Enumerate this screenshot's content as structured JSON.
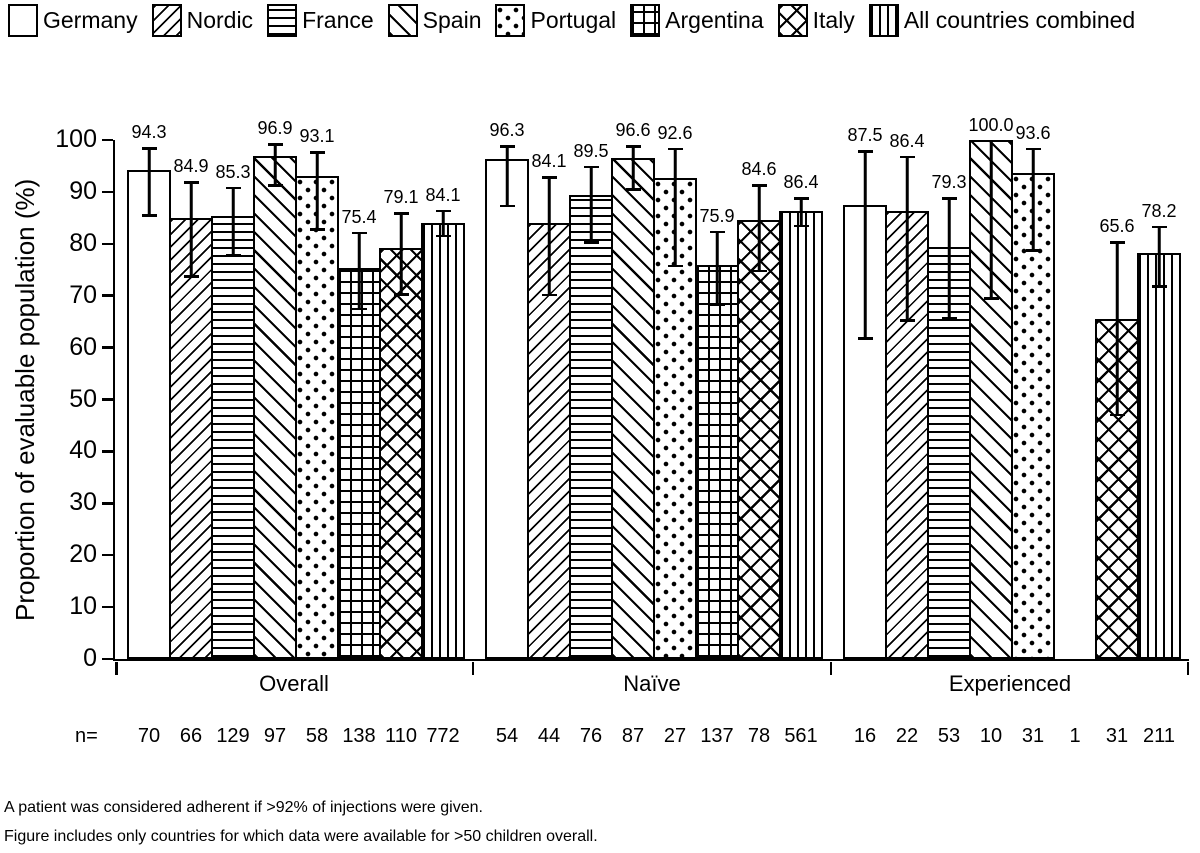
{
  "legend": {
    "items": [
      {
        "label": "Germany",
        "pattern": "plain"
      },
      {
        "label": "Nordic",
        "pattern": "diag-up"
      },
      {
        "label": "France",
        "pattern": "horiz"
      },
      {
        "label": "Spain",
        "pattern": "diag-down"
      },
      {
        "label": "Portugal",
        "pattern": "dots"
      },
      {
        "label": "Argentina",
        "pattern": "grid"
      },
      {
        "label": "Italy",
        "pattern": "cross"
      },
      {
        "label": "All countries combined",
        "pattern": "vert"
      }
    ]
  },
  "chart_data": {
    "type": "bar",
    "title": "",
    "xlabel": "",
    "ylabel": "Proportion of evaluable population (%)",
    "ylim": [
      0,
      100
    ],
    "yticks": [
      0,
      10,
      20,
      30,
      40,
      50,
      60,
      70,
      80,
      90,
      100
    ],
    "grid": false,
    "legend_position": "top",
    "error_bars": "95% CI (estimated from figure)",
    "bar_colors": {
      "fill": "#ffffff",
      "stroke": "#000000"
    },
    "n_prefix": "n=",
    "groups": [
      {
        "label": "Overall",
        "bars": [
          {
            "country": "Germany",
            "pattern": "plain",
            "value": 94.3,
            "ci_low": 85.2,
            "ci_high": 98.6,
            "n": 70
          },
          {
            "country": "Nordic",
            "pattern": "diag-up",
            "value": 84.9,
            "ci_low": 73.5,
            "ci_high": 92.1,
            "n": 66
          },
          {
            "country": "France",
            "pattern": "horiz",
            "value": 85.3,
            "ci_low": 77.6,
            "ci_high": 91.0,
            "n": 129
          },
          {
            "country": "Spain",
            "pattern": "diag-down",
            "value": 96.9,
            "ci_low": 91.0,
            "ci_high": 99.4,
            "n": 97
          },
          {
            "country": "Portugal",
            "pattern": "dots",
            "value": 93.1,
            "ci_low": 82.5,
            "ci_high": 97.8,
            "n": 58
          },
          {
            "country": "Argentina",
            "pattern": "grid",
            "value": 75.4,
            "ci_low": 67.2,
            "ci_high": 82.3,
            "n": 138
          },
          {
            "country": "Italy",
            "pattern": "cross",
            "value": 79.1,
            "ci_low": 70.0,
            "ci_high": 86.1,
            "n": 110
          },
          {
            "country": "All countries combined",
            "pattern": "vert",
            "value": 84.1,
            "ci_low": 81.3,
            "ci_high": 86.6,
            "n": 772
          }
        ]
      },
      {
        "label": "Naïve",
        "bars": [
          {
            "country": "Germany",
            "pattern": "plain",
            "value": 96.3,
            "ci_low": 87.0,
            "ci_high": 99.0,
            "n": 54
          },
          {
            "country": "Nordic",
            "pattern": "diag-up",
            "value": 84.1,
            "ci_low": 69.9,
            "ci_high": 93.0,
            "n": 44
          },
          {
            "country": "France",
            "pattern": "horiz",
            "value": 89.5,
            "ci_low": 80.0,
            "ci_high": 95.0,
            "n": 76
          },
          {
            "country": "Spain",
            "pattern": "diag-down",
            "value": 96.6,
            "ci_low": 90.2,
            "ci_high": 99.0,
            "n": 87
          },
          {
            "country": "Portugal",
            "pattern": "dots",
            "value": 92.6,
            "ci_low": 75.5,
            "ci_high": 98.5,
            "n": 27
          },
          {
            "country": "Argentina",
            "pattern": "grid",
            "value": 75.9,
            "ci_low": 68.0,
            "ci_high": 82.5,
            "n": 137
          },
          {
            "country": "Italy",
            "pattern": "cross",
            "value": 84.6,
            "ci_low": 74.5,
            "ci_high": 91.5,
            "n": 78
          },
          {
            "country": "All countries combined",
            "pattern": "vert",
            "value": 86.4,
            "ci_low": 83.2,
            "ci_high": 89.0,
            "n": 561
          }
        ]
      },
      {
        "label": "Experienced",
        "bars": [
          {
            "country": "Germany",
            "pattern": "plain",
            "value": 87.5,
            "ci_low": 61.5,
            "ci_high": 98.0,
            "n": 16
          },
          {
            "country": "Nordic",
            "pattern": "diag-up",
            "value": 86.4,
            "ci_low": 65.0,
            "ci_high": 97.0,
            "n": 22
          },
          {
            "country": "France",
            "pattern": "horiz",
            "value": 79.3,
            "ci_low": 65.5,
            "ci_high": 89.0,
            "n": 53
          },
          {
            "country": "Spain",
            "pattern": "diag-down",
            "value": 100.0,
            "ci_low": 69.2,
            "ci_high": 100.0,
            "n": 10
          },
          {
            "country": "Portugal",
            "pattern": "dots",
            "value": 93.6,
            "ci_low": 78.5,
            "ci_high": 98.5,
            "n": 31
          },
          {
            "country": "Argentina",
            "pattern": "grid",
            "value": null,
            "ci_low": null,
            "ci_high": null,
            "n": 1
          },
          {
            "country": "Italy",
            "pattern": "cross",
            "value": 65.6,
            "ci_low": 46.8,
            "ci_high": 80.5,
            "n": 31
          },
          {
            "country": "All countries combined",
            "pattern": "vert",
            "value": 78.2,
            "ci_low": 71.5,
            "ci_high": 83.5,
            "n": 211
          }
        ]
      }
    ]
  },
  "footnotes": {
    "line1": "A patient was considered adherent if >92% of injections were given.",
    "line2": "Figure includes only countries for which data were available for >50 children overall."
  }
}
